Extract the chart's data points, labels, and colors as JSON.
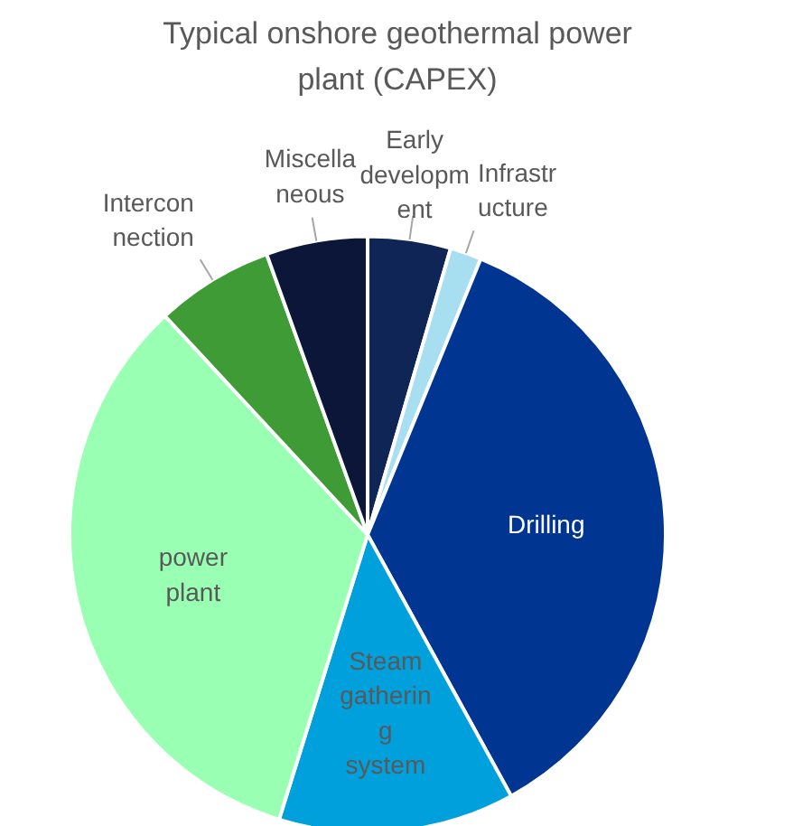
{
  "chart_data": {
    "type": "pie",
    "title": "Typical onshore geothermal power plant (CAPEX)",
    "categories": [
      "Early development",
      "Infrastructure",
      "Drilling",
      "Steam gathering system",
      "power plant",
      "Interconnection",
      "Miscellaneous"
    ],
    "values": [
      4.5,
      1.7,
      35.8,
      12.8,
      33.3,
      6.4,
      5.5
    ],
    "colors": [
      "#0e2556",
      "#a8dff0",
      "#003591",
      "#00a0dc",
      "#99ffb3",
      "#3f9b35",
      "#0b1638"
    ]
  }
}
